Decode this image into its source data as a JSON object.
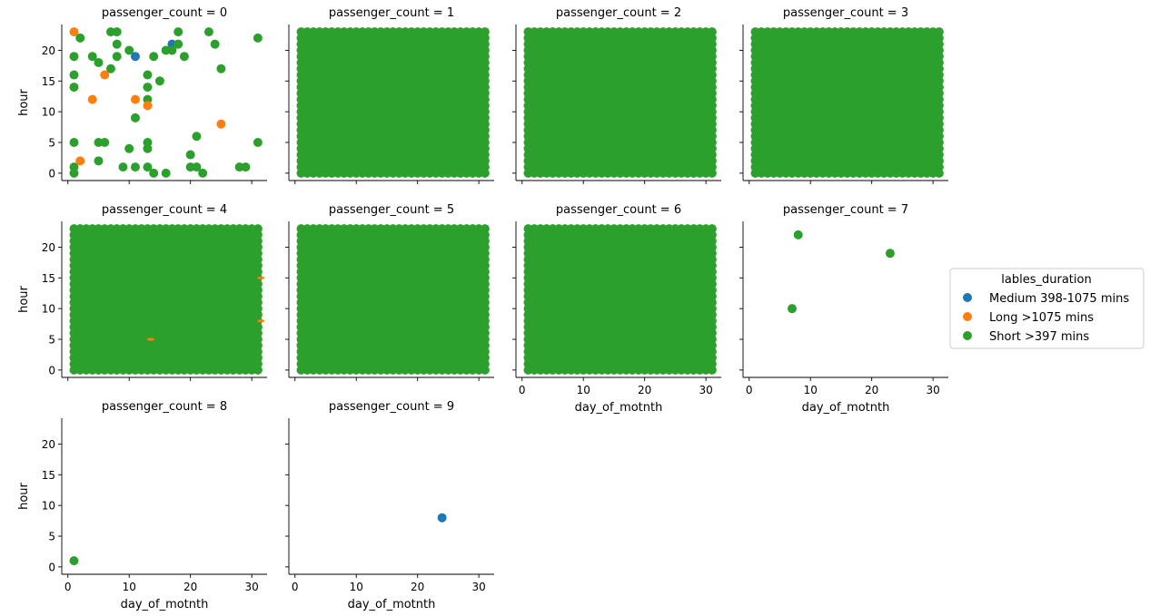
{
  "chart_data": {
    "type": "scatter",
    "facet_variable": "passenger_count",
    "x_label": "day_of_motnth",
    "y_label": "hour",
    "xlim": [
      -1,
      32.5
    ],
    "ylim": [
      -1.2,
      24.2
    ],
    "x_ticks": [
      0,
      10,
      20,
      30
    ],
    "y_ticks": [
      0,
      5,
      10,
      15,
      20
    ],
    "legend": {
      "title": "lables_duration",
      "placement": "right",
      "entries": [
        {
          "label": "Medium 398-1075 mins",
          "color": "#1f77b4"
        },
        {
          "label": "Long >1075 mins",
          "color": "#ff7f0e"
        },
        {
          "label": "Short >397 mins",
          "color": "#2ca02c"
        }
      ]
    },
    "facets": [
      {
        "title": "passenger_count = 0",
        "points": [
          {
            "x": 1,
            "y": 23,
            "label": "Long >1075 mins"
          },
          {
            "x": 2,
            "y": 22,
            "label": "Short >397 mins"
          },
          {
            "x": 1,
            "y": 19,
            "label": "Short >397 mins"
          },
          {
            "x": 1,
            "y": 16,
            "label": "Short >397 mins"
          },
          {
            "x": 1,
            "y": 14,
            "label": "Short >397 mins"
          },
          {
            "x": 1,
            "y": 5,
            "label": "Short >397 mins"
          },
          {
            "x": 1,
            "y": 1,
            "label": "Short >397 mins"
          },
          {
            "x": 1,
            "y": 0,
            "label": "Short >397 mins"
          },
          {
            "x": 2,
            "y": 2,
            "label": "Long >1075 mins"
          },
          {
            "x": 4,
            "y": 19,
            "label": "Short >397 mins"
          },
          {
            "x": 4,
            "y": 12,
            "label": "Long >1075 mins"
          },
          {
            "x": 5,
            "y": 18,
            "label": "Short >397 mins"
          },
          {
            "x": 5,
            "y": 5,
            "label": "Short >397 mins"
          },
          {
            "x": 5,
            "y": 2,
            "label": "Short >397 mins"
          },
          {
            "x": 6,
            "y": 16,
            "label": "Long >1075 mins"
          },
          {
            "x": 6,
            "y": 5,
            "label": "Short >397 mins"
          },
          {
            "x": 7,
            "y": 23,
            "label": "Short >397 mins"
          },
          {
            "x": 7,
            "y": 17,
            "label": "Short >397 mins"
          },
          {
            "x": 8,
            "y": 23,
            "label": "Short >397 mins"
          },
          {
            "x": 8,
            "y": 21,
            "label": "Short >397 mins"
          },
          {
            "x": 8,
            "y": 19,
            "label": "Short >397 mins"
          },
          {
            "x": 9,
            "y": 1,
            "label": "Short >397 mins"
          },
          {
            "x": 10,
            "y": 20,
            "label": "Short >397 mins"
          },
          {
            "x": 10,
            "y": 4,
            "label": "Short >397 mins"
          },
          {
            "x": 11,
            "y": 19,
            "label": "Medium 398-1075 mins"
          },
          {
            "x": 11,
            "y": 12,
            "label": "Long >1075 mins"
          },
          {
            "x": 11,
            "y": 9,
            "label": "Short >397 mins"
          },
          {
            "x": 11,
            "y": 1,
            "label": "Short >397 mins"
          },
          {
            "x": 13,
            "y": 16,
            "label": "Short >397 mins"
          },
          {
            "x": 13,
            "y": 14,
            "label": "Short >397 mins"
          },
          {
            "x": 13,
            "y": 12,
            "label": "Short >397 mins"
          },
          {
            "x": 13,
            "y": 11,
            "label": "Long >1075 mins"
          },
          {
            "x": 13,
            "y": 5,
            "label": "Short >397 mins"
          },
          {
            "x": 13,
            "y": 4,
            "label": "Short >397 mins"
          },
          {
            "x": 13,
            "y": 1,
            "label": "Short >397 mins"
          },
          {
            "x": 14,
            "y": 19,
            "label": "Short >397 mins"
          },
          {
            "x": 14,
            "y": 0,
            "label": "Short >397 mins"
          },
          {
            "x": 15,
            "y": 15,
            "label": "Short >397 mins"
          },
          {
            "x": 16,
            "y": 20,
            "label": "Short >397 mins"
          },
          {
            "x": 16,
            "y": 0,
            "label": "Short >397 mins"
          },
          {
            "x": 17,
            "y": 21,
            "label": "Medium 398-1075 mins"
          },
          {
            "x": 17,
            "y": 20,
            "label": "Short >397 mins"
          },
          {
            "x": 18,
            "y": 23,
            "label": "Short >397 mins"
          },
          {
            "x": 18,
            "y": 21,
            "label": "Short >397 mins"
          },
          {
            "x": 19,
            "y": 19,
            "label": "Short >397 mins"
          },
          {
            "x": 20,
            "y": 3,
            "label": "Short >397 mins"
          },
          {
            "x": 20,
            "y": 1,
            "label": "Short >397 mins"
          },
          {
            "x": 21,
            "y": 6,
            "label": "Short >397 mins"
          },
          {
            "x": 21,
            "y": 1,
            "label": "Short >397 mins"
          },
          {
            "x": 22,
            "y": 0,
            "label": "Short >397 mins"
          },
          {
            "x": 23,
            "y": 23,
            "label": "Short >397 mins"
          },
          {
            "x": 24,
            "y": 21,
            "label": "Short >397 mins"
          },
          {
            "x": 25,
            "y": 17,
            "label": "Short >397 mins"
          },
          {
            "x": 25,
            "y": 8,
            "label": "Long >1075 mins"
          },
          {
            "x": 28,
            "y": 1,
            "label": "Short >397 mins"
          },
          {
            "x": 29,
            "y": 1,
            "label": "Short >397 mins"
          },
          {
            "x": 31,
            "y": 22,
            "label": "Short >397 mins"
          },
          {
            "x": 31,
            "y": 5,
            "label": "Short >397 mins"
          }
        ]
      },
      {
        "title": "passenger_count = 1",
        "dense_grid": {
          "x_range": [
            1,
            31
          ],
          "y_range": [
            0,
            23
          ],
          "label": "Short >397 mins"
        }
      },
      {
        "title": "passenger_count = 2",
        "dense_grid": {
          "x_range": [
            1,
            31
          ],
          "y_range": [
            0,
            23
          ],
          "label": "Short >397 mins"
        }
      },
      {
        "title": "passenger_count = 3",
        "dense_grid": {
          "x_range": [
            1,
            31
          ],
          "y_range": [
            0,
            23
          ],
          "label": "Short >397 mins"
        }
      },
      {
        "title": "passenger_count = 4",
        "dense_grid": {
          "x_range": [
            1,
            31
          ],
          "y_range": [
            0,
            23
          ],
          "label": "Short >397 mins"
        },
        "visible_other_points": [
          {
            "x": 13.5,
            "y": 5,
            "label": "Long >1075 mins"
          },
          {
            "x": 31.5,
            "y": 15,
            "label": "Long >1075 mins"
          },
          {
            "x": 31.5,
            "y": 8,
            "label": "Long >1075 mins"
          }
        ]
      },
      {
        "title": "passenger_count = 5",
        "dense_grid": {
          "x_range": [
            1,
            31
          ],
          "y_range": [
            0,
            23
          ],
          "label": "Short >397 mins"
        }
      },
      {
        "title": "passenger_count = 6",
        "dense_grid": {
          "x_range": [
            1,
            31
          ],
          "y_range": [
            0,
            23
          ],
          "label": "Short >397 mins"
        }
      },
      {
        "title": "passenger_count = 7",
        "points": [
          {
            "x": 8,
            "y": 22,
            "label": "Short >397 mins"
          },
          {
            "x": 23,
            "y": 19,
            "label": "Short >397 mins"
          },
          {
            "x": 7,
            "y": 10,
            "label": "Short >397 mins"
          }
        ]
      },
      {
        "title": "passenger_count = 8",
        "points": [
          {
            "x": 1,
            "y": 1,
            "label": "Short >397 mins"
          }
        ]
      },
      {
        "title": "passenger_count = 9",
        "points": [
          {
            "x": 24,
            "y": 8,
            "label": "Medium 398-1075 mins"
          }
        ]
      }
    ]
  }
}
